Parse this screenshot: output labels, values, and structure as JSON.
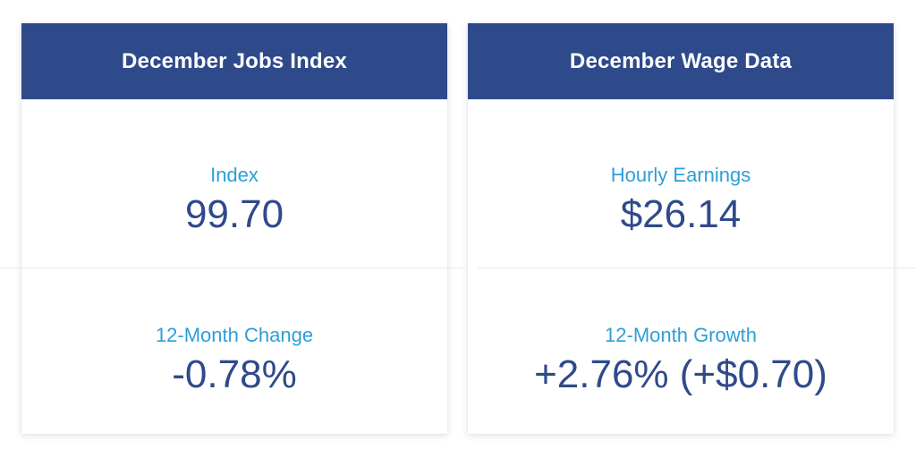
{
  "cards": [
    {
      "title": "December Jobs Index",
      "stats": [
        {
          "label": "Index",
          "value": "99.70"
        },
        {
          "label": "12-Month Change",
          "value": "-0.78%"
        }
      ]
    },
    {
      "title": "December Wage Data",
      "stats": [
        {
          "label": "Hourly Earnings",
          "value": "$26.14"
        },
        {
          "label": "12-Month Growth",
          "value": "+2.76% (+$0.70)"
        }
      ]
    }
  ],
  "colors": {
    "header_bg": "#2f4a8a",
    "label": "#2d9fd8",
    "value": "#2f4a8a"
  }
}
